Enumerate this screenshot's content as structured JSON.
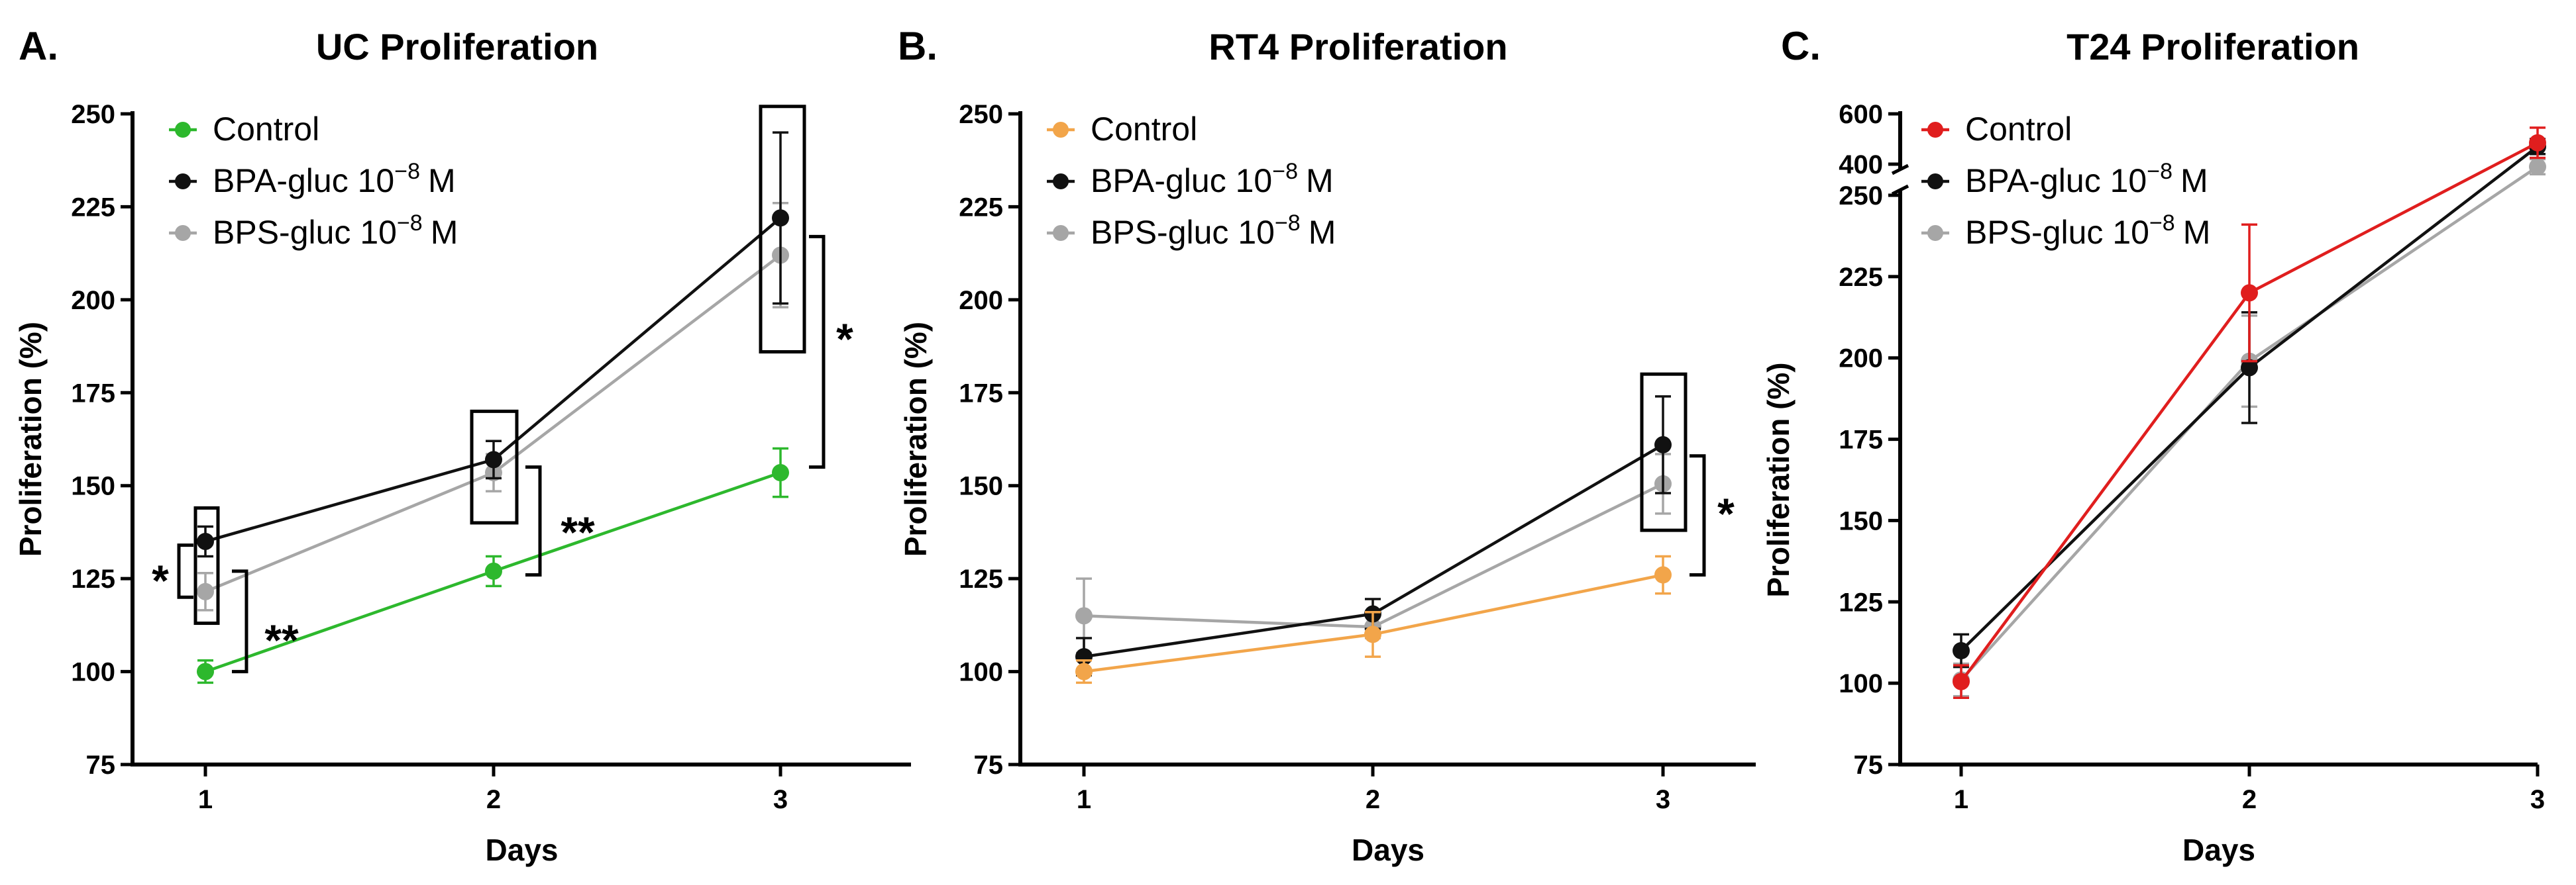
{
  "colors": {
    "control_uc": "#2db82d",
    "control_rt4": "#f2a54a",
    "control_t24": "#e01e1e",
    "bpa": "#111111",
    "bps": "#a6a6a6",
    "axis": "#000000"
  },
  "chart_data": [
    {
      "id": "A",
      "letter": "A.",
      "type": "line",
      "title": "UC Proliferation",
      "xlabel": "Days",
      "ylabel": "Proliferation (%)",
      "x": [
        1,
        2,
        3
      ],
      "xticks": [
        "1",
        "2",
        "3"
      ],
      "ylim": [
        75,
        250
      ],
      "yticks": [
        75,
        100,
        125,
        150,
        175,
        200,
        225,
        250
      ],
      "legend": [
        "Control",
        "BPA-gluc 10",
        "BPS-gluc 10"
      ],
      "legend_exp": "−8",
      "legend_unit": "M",
      "series": [
        {
          "name": "Control",
          "values": [
            100,
            127,
            153.5
          ],
          "err": [
            3,
            4,
            6.5
          ]
        },
        {
          "name": "BPA-gluc 10−8 M",
          "values": [
            135,
            157,
            222
          ],
          "err": [
            4,
            5,
            23
          ]
        },
        {
          "name": "BPS-gluc 10−8 M",
          "values": [
            121.5,
            153.5,
            212
          ],
          "err": [
            5,
            5,
            14
          ]
        }
      ],
      "annotations": [
        "*",
        "**",
        "**",
        "*"
      ]
    },
    {
      "id": "B",
      "letter": "B.",
      "type": "line",
      "title": "RT4 Proliferation",
      "xlabel": "Days",
      "ylabel": "Proliferation (%)",
      "x": [
        1,
        2,
        3
      ],
      "xticks": [
        "1",
        "2",
        "3"
      ],
      "ylim": [
        75,
        250
      ],
      "yticks": [
        75,
        100,
        125,
        150,
        175,
        200,
        225,
        250
      ],
      "legend": [
        "Control",
        "BPA-gluc 10",
        "BPS-gluc 10"
      ],
      "legend_exp": "−8",
      "legend_unit": "M",
      "series": [
        {
          "name": "Control",
          "values": [
            100,
            110,
            126
          ],
          "err": [
            3,
            6,
            5
          ]
        },
        {
          "name": "BPA-gluc 10−8 M",
          "values": [
            104,
            115.5,
            161
          ],
          "err": [
            5,
            4,
            13
          ]
        },
        {
          "name": "BPS-gluc 10−8 M",
          "values": [
            115,
            112,
            150.5
          ],
          "err": [
            10,
            3,
            8
          ]
        }
      ],
      "annotations": [
        "*"
      ]
    },
    {
      "id": "C",
      "letter": "C.",
      "type": "line",
      "title": "T24 Proliferation",
      "xlabel": "Days",
      "ylabel": "Proliferation (%)",
      "x": [
        1,
        2,
        3
      ],
      "xticks": [
        "1",
        "2",
        "3"
      ],
      "ylim": [
        75,
        250
      ],
      "ylim_upper": [
        400,
        600
      ],
      "axis_break": "250-400",
      "yticks": [
        75,
        100,
        125,
        150,
        175,
        200,
        225,
        250
      ],
      "yticks_upper": [
        400,
        600
      ],
      "legend": [
        "Control",
        "BPA-gluc 10",
        "BPS-gluc 10"
      ],
      "legend_exp": "−8",
      "legend_unit": "M",
      "series": [
        {
          "name": "Control",
          "values": [
            100.5,
            220,
            485
          ],
          "err": [
            5,
            21,
            60
          ]
        },
        {
          "name": "BPA-gluc 10−8 M",
          "values": [
            110,
            197,
            470
          ],
          "err": [
            5,
            17,
            30
          ]
        },
        {
          "name": "BPS-gluc 10−8 M",
          "values": [
            101,
            199,
            390
          ],
          "err": [
            5,
            14,
            30
          ]
        }
      ],
      "annotations": []
    }
  ]
}
